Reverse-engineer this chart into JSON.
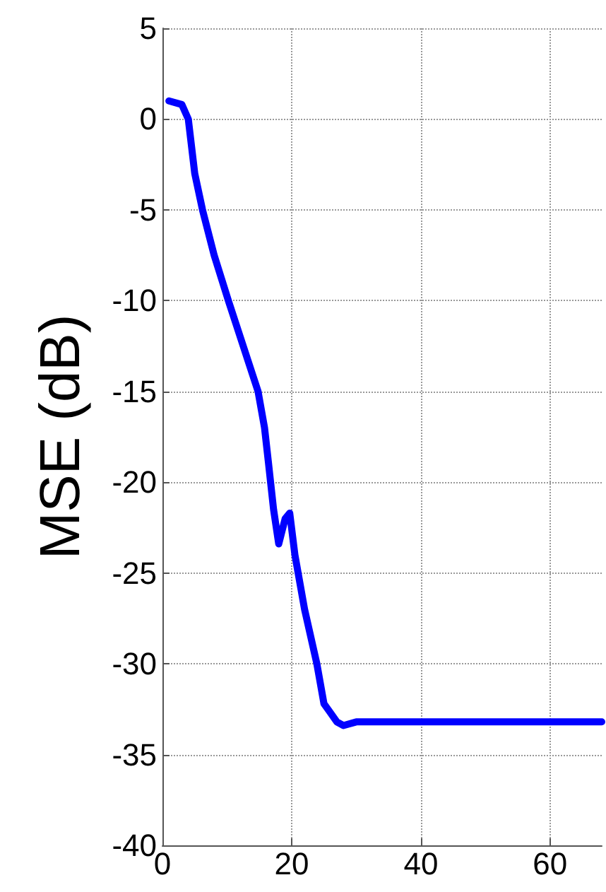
{
  "chart_data": {
    "type": "line",
    "ylabel": "MSE (dB)",
    "x": [
      1,
      3,
      4,
      5,
      6.2,
      8,
      10.2,
      12.5,
      14.8,
      15.8,
      16.4,
      17.2,
      18,
      19,
      19.7,
      20.5,
      22,
      23.9,
      25,
      26,
      27,
      28,
      30,
      68
    ],
    "series": [
      {
        "color": "#0000ff",
        "values": [
          1,
          0.8,
          0,
          -3,
          -5,
          -7.5,
          -10,
          -12.5,
          -15,
          -17,
          -18.9,
          -21.5,
          -23.4,
          -22,
          -21.7,
          -24,
          -27,
          -30,
          -32.2,
          -32.7,
          -33.2,
          -33.4,
          -33.2,
          -33.2
        ]
      }
    ],
    "xlim": [
      0,
      68
    ],
    "xticks": [
      0,
      20,
      40,
      60
    ],
    "ylim": [
      -40,
      5
    ],
    "yticks": [
      -40,
      -35,
      -30,
      -25,
      -20,
      -15,
      -10,
      -5,
      0,
      5
    ],
    "grid": true,
    "marker": "none",
    "line_style": "solid"
  }
}
